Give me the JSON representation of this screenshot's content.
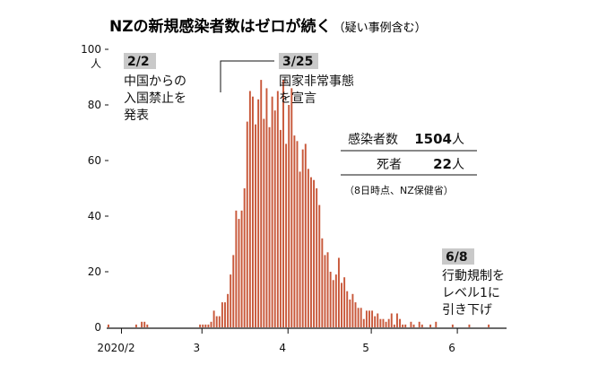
{
  "chart_data": {
    "type": "bar",
    "title": "NZの新規感染者数はゼロが続く",
    "subtitle": "（疑い事例含む）",
    "y_unit": "人",
    "ylim": [
      0,
      100
    ],
    "y_ticks": [
      "0",
      "20",
      "40",
      "60",
      "80",
      "100"
    ],
    "x_ticks": [
      {
        "label": "2020/2",
        "date": "2020-02-01"
      },
      {
        "label": "3",
        "date": "2020-03-01"
      },
      {
        "label": "4",
        "date": "2020-04-01"
      },
      {
        "label": "5",
        "date": "2020-05-01"
      },
      {
        "label": "6",
        "date": "2020-06-01"
      }
    ],
    "bar_color": "#c8583a",
    "start_date": "2020-01-27",
    "values": [
      1,
      0,
      0,
      0,
      0,
      0,
      0,
      0,
      0,
      0,
      1,
      0,
      2,
      2,
      1,
      0,
      0,
      0,
      0,
      0,
      0,
      0,
      0,
      0,
      0,
      0,
      0,
      0,
      0,
      0,
      0,
      0,
      0,
      1,
      1,
      1,
      1,
      2,
      6,
      4,
      4,
      9,
      9,
      12,
      19,
      26,
      42,
      39,
      42,
      50,
      74,
      85,
      83,
      73,
      82,
      89,
      75,
      86,
      72,
      83,
      78,
      85,
      71,
      89,
      66,
      80,
      86,
      69,
      67,
      56,
      64,
      66,
      57,
      54,
      53,
      50,
      44,
      32,
      26,
      27,
      20,
      17,
      19,
      25,
      16,
      18,
      13,
      10,
      12,
      9,
      7,
      7,
      3,
      6,
      6,
      6,
      4,
      5,
      3,
      3,
      2,
      3,
      5,
      1,
      5,
      3,
      1,
      1,
      0,
      2,
      1,
      0,
      2,
      1,
      0,
      0,
      1,
      0,
      2,
      0,
      0,
      0,
      0,
      0,
      1,
      0,
      0,
      0,
      0,
      0,
      1,
      0,
      0,
      0,
      0,
      0,
      0,
      1,
      0,
      0,
      0,
      0,
      0,
      0
    ],
    "annotations": [
      {
        "date_label": "2/2",
        "lines": [
          "中国からの",
          "入国禁止を",
          "発表"
        ]
      },
      {
        "date_label": "3/25",
        "lines": [
          "国家非常事態",
          "を宣言"
        ]
      },
      {
        "date_label": "6/8",
        "lines": [
          "行動規制を",
          "レベル1に",
          "引き下げ"
        ]
      }
    ],
    "stats": [
      {
        "label": "感染者数",
        "value": "1504",
        "unit": "人"
      },
      {
        "label": "死者",
        "value": "22",
        "unit": "人"
      }
    ],
    "source": "（8日時点、NZ保健省）"
  }
}
